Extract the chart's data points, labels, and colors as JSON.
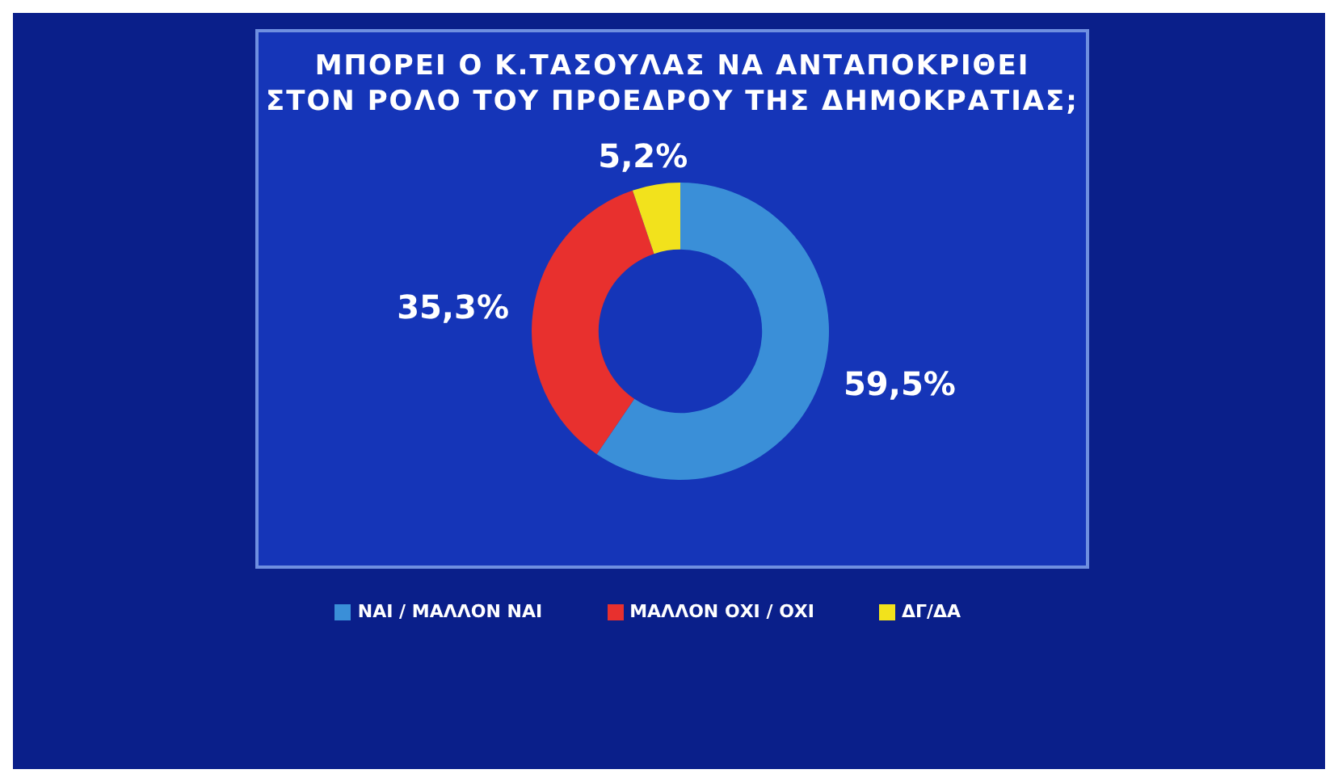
{
  "chart_data": {
    "type": "donut",
    "title": "ΜΠΟΡΕΙ Ο Κ.ΤΑΣΟΥΛΑΣ ΝΑ ΑΝΤΑΠΟΚΡΙΘΕΙ\nΣΤΟΝ ΡΟΛΟ ΤΟΥ ΠΡΟΕΔΡΟΥ ΤΗΣ ΔΗΜΟΚΡΑΤΙΑΣ;",
    "categories": [
      "ΝΑΙ / ΜΑΛΛΟΝ ΝΑΙ",
      "ΜΑΛΛΟΝ ΟΧΙ / ΟΧΙ",
      "ΔΓ/ΔΑ"
    ],
    "values": [
      59.5,
      35.3,
      5.2
    ],
    "value_labels": [
      "59,5%",
      "35,3%",
      "5,2%"
    ],
    "colors": [
      "#3a8fd8",
      "#e8302e",
      "#f2e21c"
    ],
    "legend": "bottom"
  }
}
